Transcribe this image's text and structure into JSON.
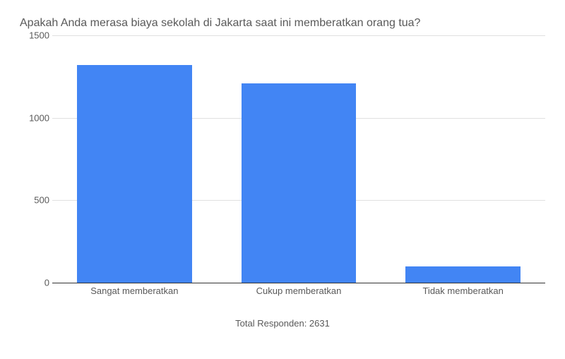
{
  "chart": {
    "type": "bar",
    "title": "Apakah Anda merasa biaya sekolah di Jakarta saat ini memberatkan orang tua?",
    "title_fontsize": 16,
    "title_color": "#595959",
    "categories": [
      "Sangat memberatkan",
      "Cukup memberatkan",
      "Tidak memberatkan"
    ],
    "values": [
      1320,
      1210,
      100
    ],
    "bar_color": "#4285f4",
    "bar_width": 0.7,
    "ylim": [
      0,
      1500
    ],
    "ytick_step": 500,
    "yticks": [
      0,
      500,
      1000,
      1500
    ],
    "axis_line_color": "#333333",
    "grid_color": "#e0e0e0",
    "label_color": "#595959",
    "label_fontsize": 13,
    "background_color": "#ffffff",
    "footer_text": "Total Responden: 2631"
  }
}
